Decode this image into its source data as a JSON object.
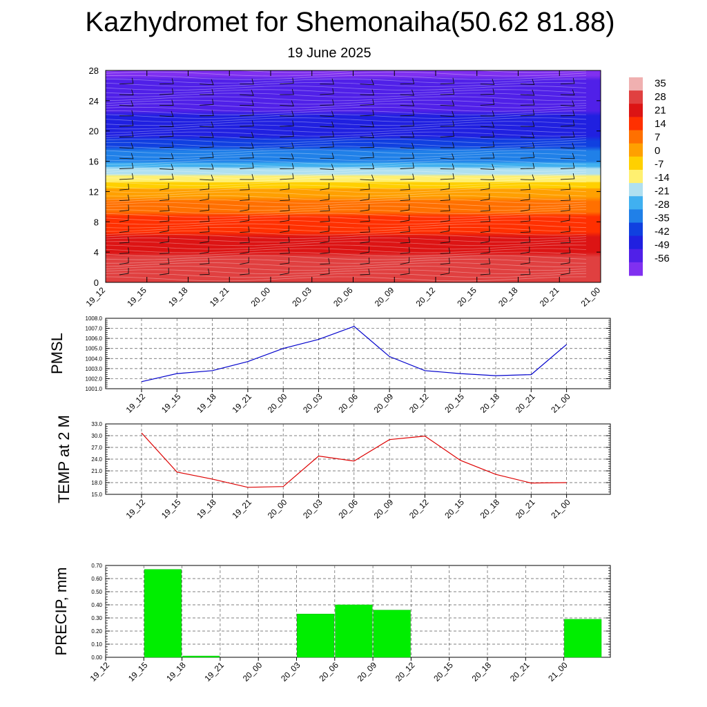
{
  "title": "Kazhydromet for Shemonaiha(50.62 81.88)",
  "subtitle": "19 June 2025",
  "time_labels": [
    "19_12",
    "19_15",
    "19_18",
    "19_21",
    "20_00",
    "20_03",
    "20_06",
    "20_09",
    "20_12",
    "20_15",
    "20_18",
    "20_21",
    "21_00"
  ],
  "chart_data": [
    {
      "type": "heatmap",
      "title": "",
      "ylim": [
        0,
        28
      ],
      "y_ticks": [
        "0",
        "4",
        "8",
        "12",
        "16",
        "20",
        "24",
        "28"
      ],
      "colorbar": {
        "labels": [
          "35",
          "28",
          "21",
          "14",
          "7",
          "0",
          "-7",
          "-14",
          "-21",
          "-28",
          "-35",
          "-42",
          "-49",
          "-56"
        ],
        "colors": [
          "#f0b0b0",
          "#e04040",
          "#dc1414",
          "#ff3000",
          "#ff7000",
          "#ffa000",
          "#ffd000",
          "#fff070",
          "#b0e0f0",
          "#40b0f0",
          "#2080e8",
          "#1040e0",
          "#2020e0",
          "#5020e8",
          "#8030f0"
        ]
      },
      "profile": [
        {
          "level": 0,
          "value": 30
        },
        {
          "level": 4,
          "value": 24
        },
        {
          "level": 8,
          "value": 14
        },
        {
          "level": 12,
          "value": 2
        },
        {
          "level": 13,
          "value": -8
        },
        {
          "level": 14,
          "value": -14
        },
        {
          "level": 16,
          "value": -30
        },
        {
          "level": 20,
          "value": -46
        },
        {
          "level": 24,
          "value": -52
        },
        {
          "level": 28,
          "value": -58
        }
      ]
    },
    {
      "type": "line",
      "ylabel": "PMSL",
      "ylim": [
        1001.0,
        1008.0
      ],
      "y_ticks": [
        "1001.0",
        "1002.0",
        "1003.0",
        "1004.0",
        "1005.0",
        "1006.0",
        "1007.0",
        "1008.0"
      ],
      "series": [
        {
          "color": "#0000cc",
          "values": [
            1001.7,
            1002.5,
            1002.8,
            1003.7,
            1005.0,
            1005.9,
            1007.2,
            1004.2,
            1002.8,
            1002.5,
            1002.3,
            1002.4,
            1005.4
          ]
        }
      ]
    },
    {
      "type": "line",
      "ylabel": "TEMP at 2 M",
      "ylim": [
        15.0,
        33.0
      ],
      "y_ticks": [
        "15.0",
        "18.0",
        "21.0",
        "24.0",
        "27.0",
        "30.0",
        "33.0"
      ],
      "series": [
        {
          "color": "#dd0000",
          "values": [
            30.7,
            20.7,
            18.9,
            16.8,
            17.0,
            24.8,
            23.5,
            29.0,
            29.9,
            23.7,
            20.1,
            17.9,
            18.0
          ]
        }
      ]
    },
    {
      "type": "bar",
      "ylabel": "PRECIP, mm",
      "ylim": [
        0,
        0.7
      ],
      "y_ticks": [
        "0.00",
        "0.10",
        "0.20",
        "0.30",
        "0.40",
        "0.50",
        "0.60",
        "0.70"
      ],
      "color": "#00ee00",
      "values": [
        0,
        0.67,
        0.01,
        0,
        0,
        0.33,
        0.4,
        0.36,
        0,
        0,
        0,
        0,
        0.29
      ]
    }
  ]
}
